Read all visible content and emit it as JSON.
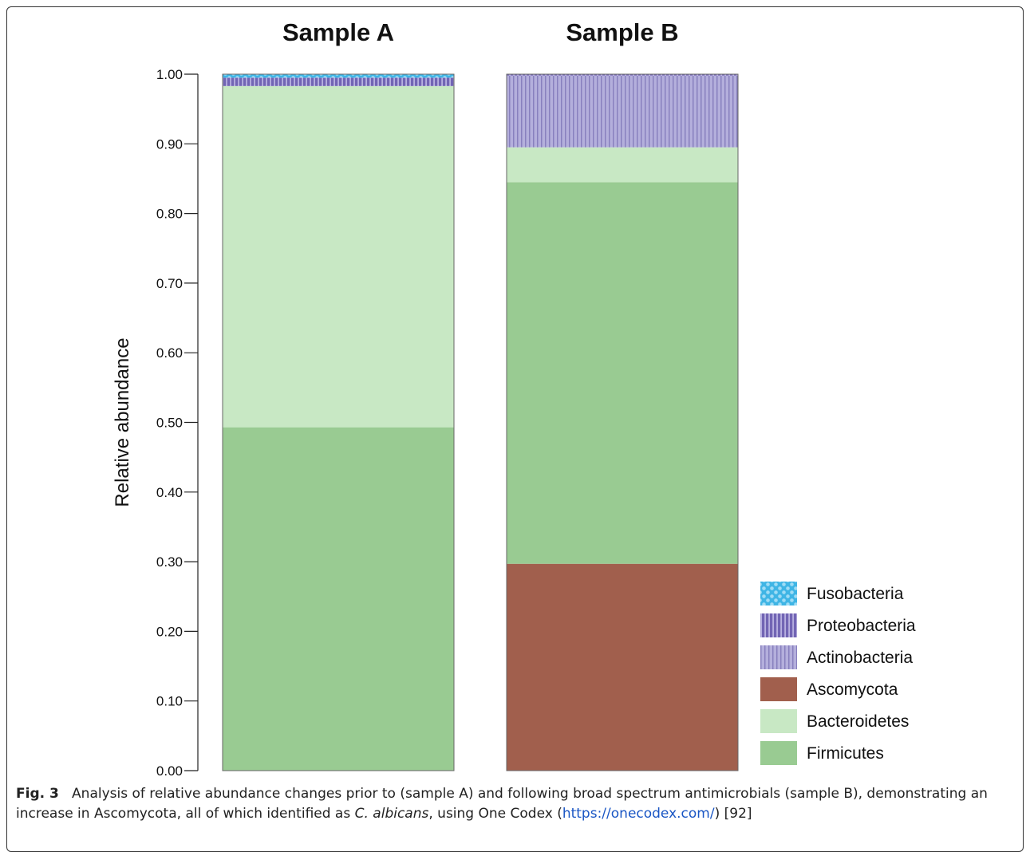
{
  "chart_data": {
    "type": "bar",
    "stacked": true,
    "ylabel": "Relative abundance",
    "ylim": [
      0,
      1
    ],
    "yticks": [
      "0.00",
      "0.10",
      "0.20",
      "0.30",
      "0.40",
      "0.50",
      "0.60",
      "0.70",
      "0.80",
      "0.90",
      "1.00"
    ],
    "categories": [
      "Sample A",
      "Sample B"
    ],
    "series": [
      {
        "name": "Firmicutes",
        "color": "#99cb92",
        "pattern": "solid",
        "values": [
          0.493,
          0.548
        ]
      },
      {
        "name": "Bacteroidetes",
        "color": "#c8e8c4",
        "pattern": "solid",
        "values": [
          0.49,
          0.05
        ]
      },
      {
        "name": "Ascomycota",
        "color": "#a15f4d",
        "pattern": "solid",
        "values": [
          0.0,
          0.297
        ]
      },
      {
        "name": "Actinobacteria",
        "color": "#b4afdc",
        "pattern": "thin-vertical-stripes",
        "values": [
          0.0,
          0.103
        ]
      },
      {
        "name": "Proteobacteria",
        "color": "#7265b4",
        "pattern": "vertical-stripes",
        "values": [
          0.012,
          0.002
        ]
      },
      {
        "name": "Fusobacteria",
        "color": "#3fb5e5",
        "pattern": "dots",
        "values": [
          0.005,
          0.0
        ]
      }
    ],
    "stack_order": [
      "Ascomycota",
      "Firmicutes",
      "Bacteroidetes",
      "Actinobacteria",
      "Proteobacteria",
      "Fusobacteria"
    ],
    "legend_order": [
      "Fusobacteria",
      "Proteobacteria",
      "Actinobacteria",
      "Ascomycota",
      "Bacteroidetes",
      "Firmicutes"
    ],
    "legend_position": "bottom-right"
  },
  "caption": {
    "label": "Fig. 3",
    "text_before_italic": "Analysis of relative abundance changes prior to (sample A) and following broad spectrum antimicrobials (sample B), demonstrating an increase in Ascomycota, all of which identified as ",
    "italic": "C. albicans",
    "text_after_italic": ", using One Codex (",
    "link": "https://onecodex.com/",
    "text_end": ") [92]"
  }
}
